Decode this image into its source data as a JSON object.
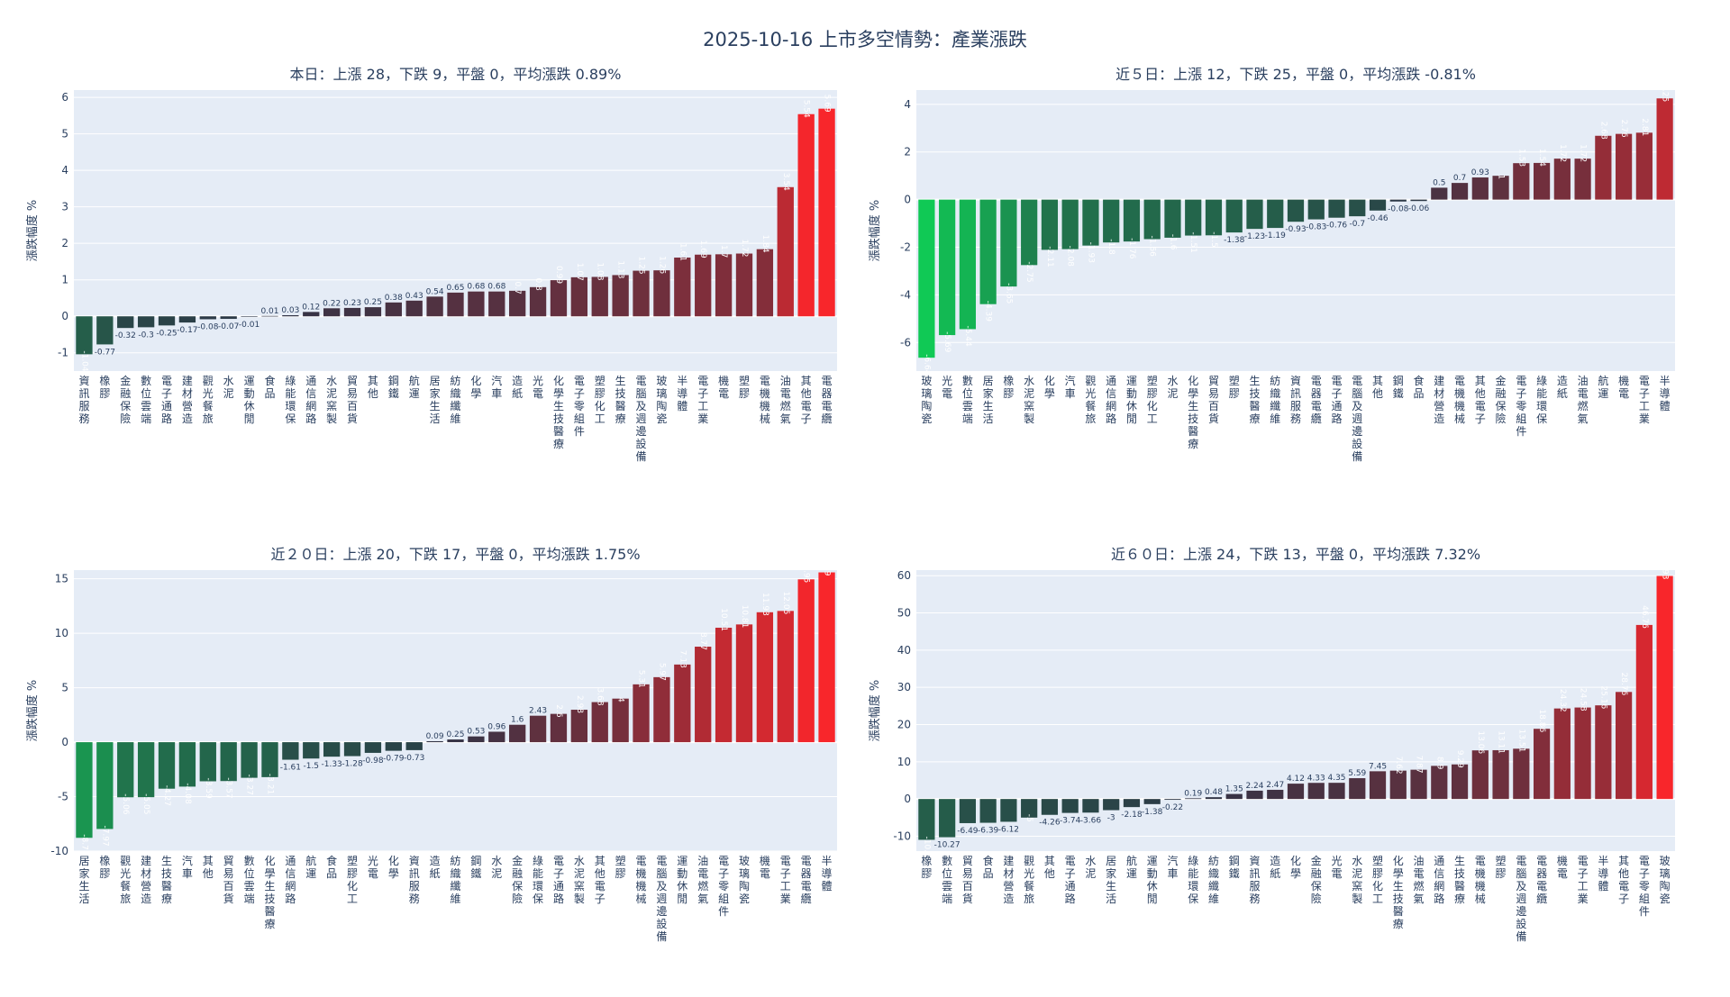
{
  "title": "2025-10-16 上市多空情勢：產業漲跌",
  "colors": {
    "plot_bg": "#e5ecf6",
    "grid": "#ffffff",
    "text": "#2a3f5f",
    "pos_strong": "#f8262b",
    "neg_strong": "#10c955",
    "neutral": "#2d3446"
  },
  "chart_data": [
    {
      "type": "bar",
      "title": "本日：上漲 28，下跌 9，平盤 0，平均漲跌 0.89%",
      "ylabel": "漲跌幅度 %",
      "ylim": [
        -1.5,
        6.2
      ],
      "yticks": [
        -1,
        0,
        1,
        2,
        3,
        4,
        5,
        6
      ],
      "categories": [
        "資訊服務",
        "橡膠",
        "金融保險",
        "數位雲端",
        "電子通路",
        "建材營造",
        "觀光餐旅",
        "水泥",
        "運動休閒",
        "食品",
        "綠能環保",
        "通信網路",
        "水泥窯製",
        "貿易百貨",
        "其他",
        "鋼鐵",
        "航運",
        "居家生活",
        "紡織纖維",
        "化學",
        "汽車",
        "造紙",
        "光電",
        "化學生技醫療",
        "電子零組件",
        "塑膠化工",
        "生技醫療",
        "電腦及週邊設備",
        "玻璃陶瓷",
        "半導體",
        "電子工業",
        "機電",
        "塑膠",
        "電機機械",
        "油電燃氣",
        "其他電子",
        "電器電纜"
      ],
      "values": [
        -1.04,
        -0.77,
        -0.32,
        -0.3,
        -0.25,
        -0.17,
        -0.08,
        -0.07,
        -0.01,
        0.01,
        0.03,
        0.12,
        0.22,
        0.23,
        0.25,
        0.38,
        0.43,
        0.54,
        0.65,
        0.68,
        0.68,
        0.7,
        0.8,
        0.99,
        1.07,
        1.08,
        1.13,
        1.25,
        1.26,
        1.61,
        1.69,
        1.7,
        1.72,
        1.84,
        3.54,
        5.54,
        5.69
      ]
    },
    {
      "type": "bar",
      "title": "近５日：上漲 12，下跌 25，平盤 0，平均漲跌 -0.81%",
      "ylabel": "漲跌幅度 %",
      "ylim": [
        -7.2,
        4.6
      ],
      "yticks": [
        -6,
        -4,
        -2,
        0,
        2,
        4
      ],
      "categories": [
        "玻璃陶瓷",
        "光電",
        "數位雲端",
        "居家生活",
        "橡膠",
        "水泥窯製",
        "化學",
        "汽車",
        "觀光餐旅",
        "通信網路",
        "運動休閒",
        "塑膠化工",
        "水泥",
        "化學生技醫療",
        "貿易百貨",
        "塑膠",
        "生技醫療",
        "紡織纖維",
        "資訊服務",
        "電器電纜",
        "電子通路",
        "電腦及週邊設備",
        "其他",
        "鋼鐵",
        "食品",
        "建材營造",
        "電機機械",
        "其他電子",
        "金融保險",
        "電子零組件",
        "綠能環保",
        "造紙",
        "油電燃氣",
        "航運",
        "機電",
        "電子工業",
        "半導體"
      ],
      "values": [
        -6.64,
        -5.69,
        -5.44,
        -4.39,
        -3.65,
        -2.75,
        -2.11,
        -2.08,
        -1.93,
        -1.8,
        -1.76,
        -1.66,
        -1.6,
        -1.51,
        -1.5,
        -1.38,
        -1.23,
        -1.19,
        -0.93,
        -0.83,
        -0.76,
        -0.7,
        -0.46,
        -0.08,
        -0.06,
        0.5,
        0.7,
        0.93,
        1,
        1.53,
        1.54,
        1.72,
        1.72,
        2.68,
        2.76,
        2.81,
        4.25
      ]
    },
    {
      "type": "bar",
      "title": "近２０日：上漲 20，下跌 17，平盤 0，平均漲跌 1.75%",
      "ylabel": "漲跌幅度 %",
      "ylim": [
        -10,
        15.8
      ],
      "yticks": [
        -10,
        -5,
        0,
        5,
        10,
        15
      ],
      "categories": [
        "居家生活",
        "橡膠",
        "觀光餐旅",
        "建材營造",
        "生技醫療",
        "汽車",
        "其他",
        "貿易百貨",
        "數位雲端",
        "化學生技醫療",
        "通信網路",
        "航運",
        "食品",
        "塑膠化工",
        "光電",
        "化學",
        "資訊服務",
        "造紙",
        "紡織纖維",
        "鋼鐵",
        "水泥",
        "金融保險",
        "綠能環保",
        "電子通路",
        "水泥窯製",
        "其他電子",
        "塑膠",
        "電機機械",
        "電腦及週邊設備",
        "運動休閒",
        "油電燃氣",
        "電子零組件",
        "玻璃陶瓷",
        "機電",
        "電子工業",
        "電器電纜",
        "半導體"
      ],
      "values": [
        -8.78,
        -7.97,
        -5.06,
        -5.05,
        -4.27,
        -4.08,
        -3.59,
        -3.57,
        -3.27,
        -3.21,
        -1.61,
        -1.5,
        -1.33,
        -1.28,
        -0.98,
        -0.79,
        -0.73,
        0.09,
        0.25,
        0.53,
        0.96,
        1.6,
        2.43,
        2.6,
        2.98,
        3.68,
        4,
        5.31,
        5.97,
        7.13,
        8.77,
        10.51,
        10.81,
        11.93,
        12.05,
        14.95,
        15.59
      ]
    },
    {
      "type": "bar",
      "title": "近６０日：上漲 24，下跌 13，平盤 0，平均漲跌 7.32%",
      "ylabel": "漲跌幅度 %",
      "ylim": [
        -14,
        61.5
      ],
      "yticks": [
        -10,
        0,
        10,
        20,
        30,
        40,
        50,
        60
      ],
      "categories": [
        "橡膠",
        "數位雲端",
        "貿易百貨",
        "食品",
        "建材營造",
        "觀光餐旅",
        "其他",
        "電子通路",
        "水泥",
        "居家生活",
        "航運",
        "運動休閒",
        "汽車",
        "綠能環保",
        "紡織纖維",
        "鋼鐵",
        "資訊服務",
        "造紙",
        "化學",
        "金融保險",
        "光電",
        "水泥窯製",
        "塑膠化工",
        "化學生技醫療",
        "油電燃氣",
        "通信網路",
        "生技醫療",
        "電機機械",
        "塑膠",
        "電腦及週邊設備",
        "電器電纜",
        "機電",
        "電子工業",
        "半導體",
        "其他電子",
        "電子零組件",
        "玻璃陶瓷"
      ],
      "values": [
        -10.97,
        -10.27,
        -6.49,
        -6.39,
        -6.12,
        -5,
        -4.26,
        -3.74,
        -3.66,
        -3,
        -2.18,
        -1.38,
        -0.22,
        0.19,
        0.48,
        1.35,
        2.24,
        2.47,
        4.12,
        4.33,
        4.35,
        5.59,
        7.45,
        7.62,
        7.87,
        8.9,
        9.29,
        13.06,
        13.11,
        13.51,
        18.86,
        24.32,
        24.58,
        25.16,
        28.76,
        46.76,
        59.93
      ]
    }
  ]
}
